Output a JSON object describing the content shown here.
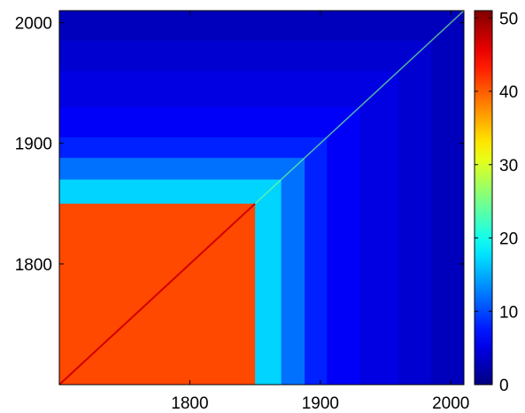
{
  "chart_data": {
    "type": "heatmap",
    "title": "",
    "xlabel": "",
    "ylabel": "",
    "x_range": [
      1700,
      2010
    ],
    "y_range": [
      1700,
      2010
    ],
    "x_ticks": [
      1800,
      1900,
      2000
    ],
    "y_ticks": [
      1800,
      1900,
      2000
    ],
    "x_tick_labels": [
      "1800",
      "1900",
      "2000"
    ],
    "y_tick_labels": [
      "1800",
      "1900",
      "2000"
    ],
    "colorbar": {
      "range": [
        0,
        51
      ],
      "ticks": [
        0,
        10,
        20,
        30,
        40,
        50
      ],
      "tick_labels": [
        "0",
        "10",
        "20",
        "30",
        "40",
        "50"
      ],
      "colormap": "jet"
    },
    "blocks": [
      {
        "year_max": 1850,
        "value": 41
      },
      {
        "year_max": 1870,
        "value": 17
      },
      {
        "year_max": 1888,
        "value": 12
      },
      {
        "year_max": 1905,
        "value": 8
      },
      {
        "year_max": 1930,
        "value": 6
      },
      {
        "year_max": 1960,
        "value": 5
      },
      {
        "year_max": 1985,
        "value": 4
      },
      {
        "year_max": 2010,
        "value": 3
      }
    ],
    "diagonal": {
      "value_before_1850": 47,
      "value_after_1850": 25
    },
    "grid": false,
    "legend": "none"
  }
}
